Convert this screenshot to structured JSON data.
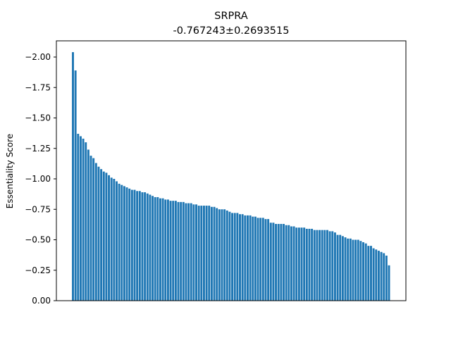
{
  "chart_data": {
    "type": "bar",
    "title": "SRPRA",
    "subtitle": "-0.767243±0.2693515",
    "xlabel": "",
    "ylabel": "Essentiality Score",
    "y_axis_inverted": true,
    "ylim": [
      0,
      -2.1
    ],
    "yticks": [
      "0.00",
      "−0.25",
      "−0.50",
      "−0.75",
      "−1.00",
      "−1.25",
      "−1.50",
      "−1.75",
      "−2.00"
    ],
    "ytick_values": [
      0,
      -0.25,
      -0.5,
      -0.75,
      -1.0,
      -1.25,
      -1.5,
      -1.75,
      -2.0
    ],
    "grid": false,
    "bar_color": "#1f77b4",
    "values": [
      -2.04,
      -1.89,
      -1.37,
      -1.35,
      -1.33,
      -1.3,
      -1.24,
      -1.19,
      -1.17,
      -1.13,
      -1.1,
      -1.08,
      -1.06,
      -1.05,
      -1.03,
      -1.01,
      -1.0,
      -0.98,
      -0.96,
      -0.95,
      -0.94,
      -0.93,
      -0.92,
      -0.91,
      -0.91,
      -0.9,
      -0.9,
      -0.89,
      -0.89,
      -0.88,
      -0.87,
      -0.86,
      -0.85,
      -0.85,
      -0.84,
      -0.84,
      -0.83,
      -0.83,
      -0.82,
      -0.82,
      -0.82,
      -0.81,
      -0.81,
      -0.81,
      -0.8,
      -0.8,
      -0.8,
      -0.79,
      -0.79,
      -0.78,
      -0.78,
      -0.78,
      -0.78,
      -0.78,
      -0.77,
      -0.77,
      -0.76,
      -0.75,
      -0.75,
      -0.75,
      -0.74,
      -0.73,
      -0.72,
      -0.72,
      -0.72,
      -0.71,
      -0.71,
      -0.7,
      -0.7,
      -0.7,
      -0.69,
      -0.69,
      -0.68,
      -0.68,
      -0.68,
      -0.67,
      -0.67,
      -0.64,
      -0.64,
      -0.63,
      -0.63,
      -0.63,
      -0.63,
      -0.62,
      -0.62,
      -0.61,
      -0.61,
      -0.6,
      -0.6,
      -0.6,
      -0.6,
      -0.59,
      -0.59,
      -0.59,
      -0.58,
      -0.58,
      -0.58,
      -0.58,
      -0.58,
      -0.58,
      -0.57,
      -0.57,
      -0.56,
      -0.54,
      -0.54,
      -0.53,
      -0.52,
      -0.51,
      -0.51,
      -0.5,
      -0.5,
      -0.5,
      -0.49,
      -0.48,
      -0.47,
      -0.45,
      -0.45,
      -0.43,
      -0.42,
      -0.41,
      -0.4,
      -0.39,
      -0.37,
      -0.29
    ]
  }
}
